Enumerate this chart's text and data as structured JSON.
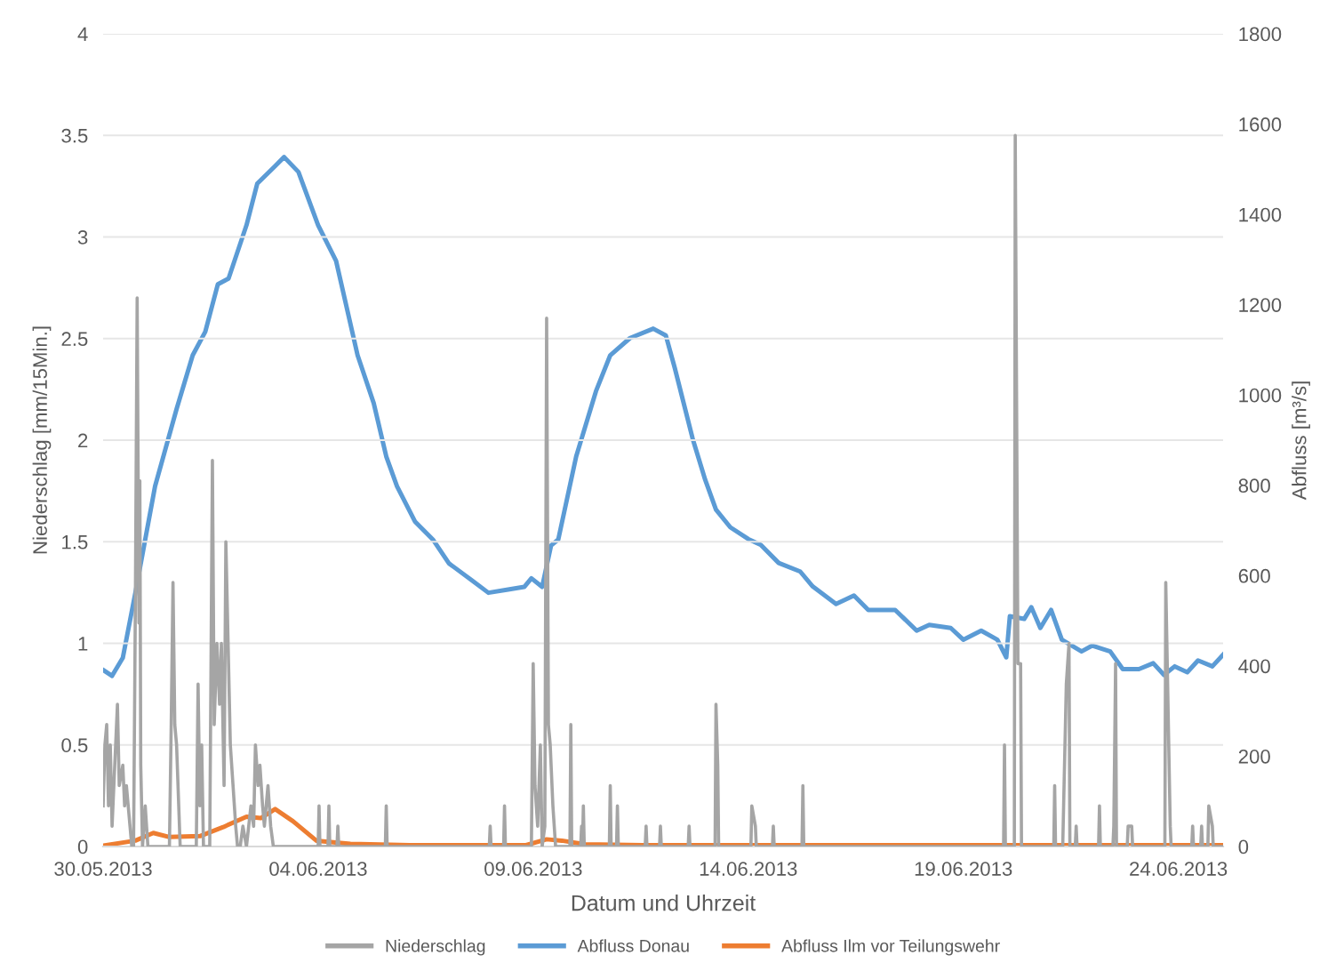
{
  "chart_data": {
    "type": "line",
    "xlabel": "Datum und Uhrzeit",
    "ylabel": "Niederschlag [mm/15Min.]",
    "y2label": "Abfluss [m³/s]",
    "xlim": [
      "2013-05-30T00:00",
      "2013-06-25T01:00"
    ],
    "xticks": [
      {
        "value": "2013-05-30",
        "label": "30.05.2013"
      },
      {
        "value": "2013-06-04",
        "label": "04.06.2013"
      },
      {
        "value": "2013-06-09",
        "label": "09.06.2013"
      },
      {
        "value": "2013-06-14",
        "label": "14.06.2013"
      },
      {
        "value": "2013-06-19",
        "label": "19.06.2013"
      },
      {
        "value": "2013-06-24",
        "label": "24.06.2013"
      }
    ],
    "ylim": [
      0,
      4
    ],
    "yticks": [
      0,
      0.5,
      1,
      1.5,
      2,
      2.5,
      3,
      3.5,
      4
    ],
    "y2lim": [
      0,
      1800
    ],
    "y2ticks": [
      0,
      200,
      400,
      600,
      800,
      1000,
      1200,
      1400,
      1600,
      1800
    ],
    "grid": "y",
    "legend": "bottom",
    "marker": "none",
    "line_style": "solid",
    "series": [
      {
        "name": "Niederschlag",
        "color": "#a5a5a5",
        "x": [
          "2013-05-30T00:00",
          "2013-05-30T01:00",
          "2013-05-30T02:00",
          "2013-05-30T03:00",
          "2013-05-30T04:00",
          "2013-05-30T05:00",
          "2013-05-30T07:00",
          "2013-05-30T08:00",
          "2013-05-30T09:00",
          "2013-05-30T11:00",
          "2013-05-30T12:00",
          "2013-05-30T13:00",
          "2013-05-30T15:00",
          "2013-05-30T16:00",
          "2013-05-30T17:00",
          "2013-05-30T18:00",
          "2013-05-30T19:00",
          "2013-05-30T20:00",
          "2013-05-30T20:30",
          "2013-05-30T21:00",
          "2013-05-30T22:00",
          "2013-05-30T23:30",
          "2013-05-31T01:00",
          "2013-05-31T13:00",
          "2013-05-31T14:00",
          "2013-05-31T15:00",
          "2013-05-31T16:00",
          "2013-05-31T17:00",
          "2013-05-31T19:00",
          "2013-06-01T04:00",
          "2013-06-01T05:00",
          "2013-06-01T06:00",
          "2013-06-01T07:00",
          "2013-06-01T08:00",
          "2013-06-01T11:30",
          "2013-06-01T13:00",
          "2013-06-01T14:00",
          "2013-06-01T15:30",
          "2013-06-01T17:00",
          "2013-06-01T18:00",
          "2013-06-01T19:30",
          "2013-06-01T20:30",
          "2013-06-01T22:00",
          "2013-06-01T23:00",
          "2013-06-02T00:30",
          "2013-06-02T02:00",
          "2013-06-02T03:00",
          "2013-06-02T04:30",
          "2013-06-02T06:00",
          "2013-06-02T08:00",
          "2013-06-02T10:30",
          "2013-06-02T12:00",
          "2013-06-02T13:00",
          "2013-06-02T14:30",
          "2013-06-02T15:30",
          "2013-06-02T17:00",
          "2013-06-02T18:00",
          "2013-06-02T20:00",
          "2013-06-02T21:30",
          "2013-06-02T23:00",
          "2013-06-04T00:00",
          "2013-06-04T00:30",
          "2013-06-04T01:00",
          "2013-06-04T05:30",
          "2013-06-04T06:00",
          "2013-06-04T06:30",
          "2013-06-04T10:30",
          "2013-06-04T11:00",
          "2013-06-04T11:30",
          "2013-06-05T13:30",
          "2013-06-05T14:00",
          "2013-06-05T14:30",
          "2013-06-07T23:30",
          "2013-06-08T00:00",
          "2013-06-08T00:30",
          "2013-06-08T07:30",
          "2013-06-08T08:00",
          "2013-06-08T08:30",
          "2013-06-08T23:00",
          "2013-06-09T00:00",
          "2013-06-09T01:00",
          "2013-06-09T02:30",
          "2013-06-09T04:00",
          "2013-06-09T05:00",
          "2013-06-09T06:30",
          "2013-06-09T07:30",
          "2013-06-09T08:30",
          "2013-06-09T09:30",
          "2013-06-09T11:00",
          "2013-06-09T12:30",
          "2013-06-09T20:30",
          "2013-06-09T21:00",
          "2013-06-09T21:30",
          "2013-06-10T02:30",
          "2013-06-10T03:00",
          "2013-06-10T03:30",
          "2013-06-10T04:00",
          "2013-06-10T04:30",
          "2013-06-10T18:30",
          "2013-06-10T19:00",
          "2013-06-10T19:30",
          "2013-06-10T22:30",
          "2013-06-10T23:00",
          "2013-06-10T23:30",
          "2013-06-11T14:30",
          "2013-06-11T15:00",
          "2013-06-11T15:30",
          "2013-06-11T22:30",
          "2013-06-11T23:00",
          "2013-06-11T23:30",
          "2013-06-12T14:30",
          "2013-06-12T15:00",
          "2013-06-12T15:30",
          "2013-06-13T05:30",
          "2013-06-13T06:00",
          "2013-06-13T07:00",
          "2013-06-13T07:30",
          "2013-06-14T01:30",
          "2013-06-14T02:00",
          "2013-06-14T04:00",
          "2013-06-14T04:30",
          "2013-06-14T13:30",
          "2013-06-14T14:00",
          "2013-06-14T14:30",
          "2013-06-15T06:00",
          "2013-06-15T06:30",
          "2013-06-15T07:00",
          "2013-06-19T22:30",
          "2013-06-19T23:00",
          "2013-06-19T23:30",
          "2013-06-20T04:30",
          "2013-06-20T05:00",
          "2013-06-20T06:30",
          "2013-06-20T08:00",
          "2013-06-20T08:30",
          "2013-06-21T02:30",
          "2013-06-21T03:00",
          "2013-06-21T03:30",
          "2013-06-21T07:30",
          "2013-06-21T08:00",
          "2013-06-21T09:30",
          "2013-06-21T11:00",
          "2013-06-21T11:30",
          "2013-06-21T14:30",
          "2013-06-21T15:00",
          "2013-06-21T15:30",
          "2013-06-22T03:30",
          "2013-06-22T04:00",
          "2013-06-22T04:30",
          "2013-06-22T11:30",
          "2013-06-22T12:00",
          "2013-06-22T13:00",
          "2013-06-22T13:30",
          "2013-06-22T19:30",
          "2013-06-22T20:00",
          "2013-06-22T22:00",
          "2013-06-22T22:30",
          "2013-06-23T16:30",
          "2013-06-23T17:00",
          "2013-06-23T19:30",
          "2013-06-23T20:00",
          "2013-06-24T07:30",
          "2013-06-24T08:00",
          "2013-06-24T08:30",
          "2013-06-24T12:30",
          "2013-06-24T13:00",
          "2013-06-24T13:30",
          "2013-06-24T16:30",
          "2013-06-24T17:00",
          "2013-06-24T19:00",
          "2013-06-24T19:30",
          "2013-06-25T01:00"
        ],
        "values": [
          0.2,
          0.5,
          0.6,
          0.2,
          0.5,
          0.1,
          0.5,
          0.7,
          0.3,
          0.4,
          0.2,
          0.3,
          0.1,
          0,
          0,
          1.2,
          2.7,
          1.1,
          1.8,
          0.4,
          0,
          0.2,
          0,
          0,
          0.6,
          1.3,
          0.6,
          0.5,
          0,
          0,
          0.8,
          0.2,
          0.5,
          0,
          0,
          1.9,
          0.6,
          1.0,
          0.7,
          1.0,
          0.3,
          1.5,
          0.9,
          0.5,
          0.3,
          0.1,
          0,
          0,
          0.1,
          0,
          0.2,
          0.1,
          0.5,
          0.3,
          0.4,
          0.2,
          0.1,
          0.3,
          0.1,
          0,
          0,
          0.2,
          0,
          0,
          0.2,
          0,
          0,
          0.1,
          0,
          0,
          0.2,
          0,
          0,
          0.1,
          0,
          0,
          0.2,
          0,
          0,
          0.9,
          0.3,
          0.1,
          0.5,
          0,
          0.1,
          2.6,
          0.6,
          0.5,
          0.2,
          0,
          0,
          0.6,
          0,
          0,
          0.1,
          0,
          0.2,
          0,
          0,
          0.3,
          0,
          0,
          0.2,
          0,
          0,
          0.1,
          0,
          0,
          0.1,
          0,
          0,
          0.1,
          0,
          0,
          0.7,
          0.4,
          0,
          0,
          0.2,
          0.1,
          0,
          0,
          0.1,
          0,
          0,
          0.3,
          0,
          0,
          0.5,
          0,
          0,
          3.5,
          0.9,
          0.9,
          0,
          0,
          0.3,
          0,
          0,
          0.2,
          0.8,
          1.0,
          0,
          0,
          0.1,
          0,
          0,
          0.2,
          0,
          0,
          0.1,
          0.9,
          0,
          0,
          0.1,
          0.1,
          0,
          0,
          1.3,
          0.1,
          0,
          0,
          0.1,
          0,
          0,
          0.1,
          0,
          0,
          0.2,
          0.1,
          0,
          0
        ]
      },
      {
        "name": "Abfluss Donau",
        "color": "#5b9bd5",
        "axis": "y2",
        "x": [
          "2013-05-30T00:00",
          "2013-05-30T05:00",
          "2013-05-30T11:00",
          "2013-05-30T18:00",
          "2013-05-31T05:00",
          "2013-05-31T17:00",
          "2013-06-01T02:00",
          "2013-06-01T09:00",
          "2013-06-01T16:00",
          "2013-06-01T22:00",
          "2013-06-02T08:00",
          "2013-06-02T14:00",
          "2013-06-03T00:00",
          "2013-06-03T05:00",
          "2013-06-03T13:00",
          "2013-06-04T00:00",
          "2013-06-04T10:00",
          "2013-06-04T22:00",
          "2013-06-05T07:00",
          "2013-06-05T14:00",
          "2013-06-05T20:00",
          "2013-06-06T06:00",
          "2013-06-06T16:00",
          "2013-06-07T01:00",
          "2013-06-07T14:00",
          "2013-06-07T23:00",
          "2013-06-08T10:00",
          "2013-06-08T19:00",
          "2013-06-08T23:00",
          "2013-06-09T05:00",
          "2013-06-09T10:00",
          "2013-06-09T14:00",
          "2013-06-10T00:00",
          "2013-06-10T11:00",
          "2013-06-10T19:00",
          "2013-06-11T06:00",
          "2013-06-11T19:00",
          "2013-06-12T02:00",
          "2013-06-12T07:00",
          "2013-06-12T17:00",
          "2013-06-13T00:00",
          "2013-06-13T06:00",
          "2013-06-13T14:00",
          "2013-06-14T00:00",
          "2013-06-14T07:00",
          "2013-06-14T17:00",
          "2013-06-15T05:00",
          "2013-06-15T12:00",
          "2013-06-16T01:00",
          "2013-06-16T11:00",
          "2013-06-16T19:00",
          "2013-06-17T10:00",
          "2013-06-17T22:00",
          "2013-06-18T05:00",
          "2013-06-18T17:00",
          "2013-06-19T00:00",
          "2013-06-19T10:00",
          "2013-06-19T19:00",
          "2013-06-20T00:00",
          "2013-06-20T02:00",
          "2013-06-20T10:00",
          "2013-06-20T14:00",
          "2013-06-20T19:00",
          "2013-06-21T01:00",
          "2013-06-21T07:00",
          "2013-06-21T18:00",
          "2013-06-22T00:00",
          "2013-06-22T10:00",
          "2013-06-22T17:00",
          "2013-06-23T02:00",
          "2013-06-23T10:00",
          "2013-06-23T16:00",
          "2013-06-23T22:00",
          "2013-06-24T05:00",
          "2013-06-24T11:00",
          "2013-06-24T19:00",
          "2013-06-25T01:00"
        ],
        "values": [
          391,
          378,
          418,
          562,
          798,
          969,
          1088,
          1140,
          1245,
          1258,
          1376,
          1468,
          1507,
          1527,
          1494,
          1376,
          1297,
          1088,
          982,
          864,
          798,
          720,
          680,
          627,
          589,
          562,
          569,
          575,
          594,
          575,
          667,
          680,
          864,
          1008,
          1088,
          1126,
          1147,
          1132,
          1060,
          903,
          812,
          746,
          707,
          681,
          668,
          628,
          609,
          576,
          537,
          556,
          524,
          524,
          478,
          491,
          484,
          458,
          478,
          458,
          419,
          510,
          504,
          530,
          484,
          524,
          458,
          432,
          445,
          432,
          393,
          393,
          406,
          380,
          399,
          386,
          412,
          399,
          425
        ]
      },
      {
        "name": "Abfluss Ilm vor Teilungswehr",
        "color": "#ed7d31",
        "axis": "y2",
        "x": [
          "2013-05-30T00:00",
          "2013-05-30T18:00",
          "2013-05-31T04:00",
          "2013-05-31T13:00",
          "2013-06-01T06:00",
          "2013-06-01T19:00",
          "2013-06-02T08:00",
          "2013-06-02T16:00",
          "2013-06-03T00:00",
          "2013-06-03T10:00",
          "2013-06-03T23:00",
          "2013-06-04T18:00",
          "2013-06-06T03:00",
          "2013-06-08T20:00",
          "2013-06-09T07:30",
          "2013-06-09T16:00",
          "2013-06-10T05:00",
          "2013-06-11T13:00",
          "2013-06-25T01:00"
        ],
        "values": [
          2,
          13,
          30,
          21,
          23,
          43,
          66,
          63,
          83,
          56,
          13,
          6,
          3,
          3,
          16,
          13,
          5,
          3,
          3
        ]
      }
    ]
  }
}
